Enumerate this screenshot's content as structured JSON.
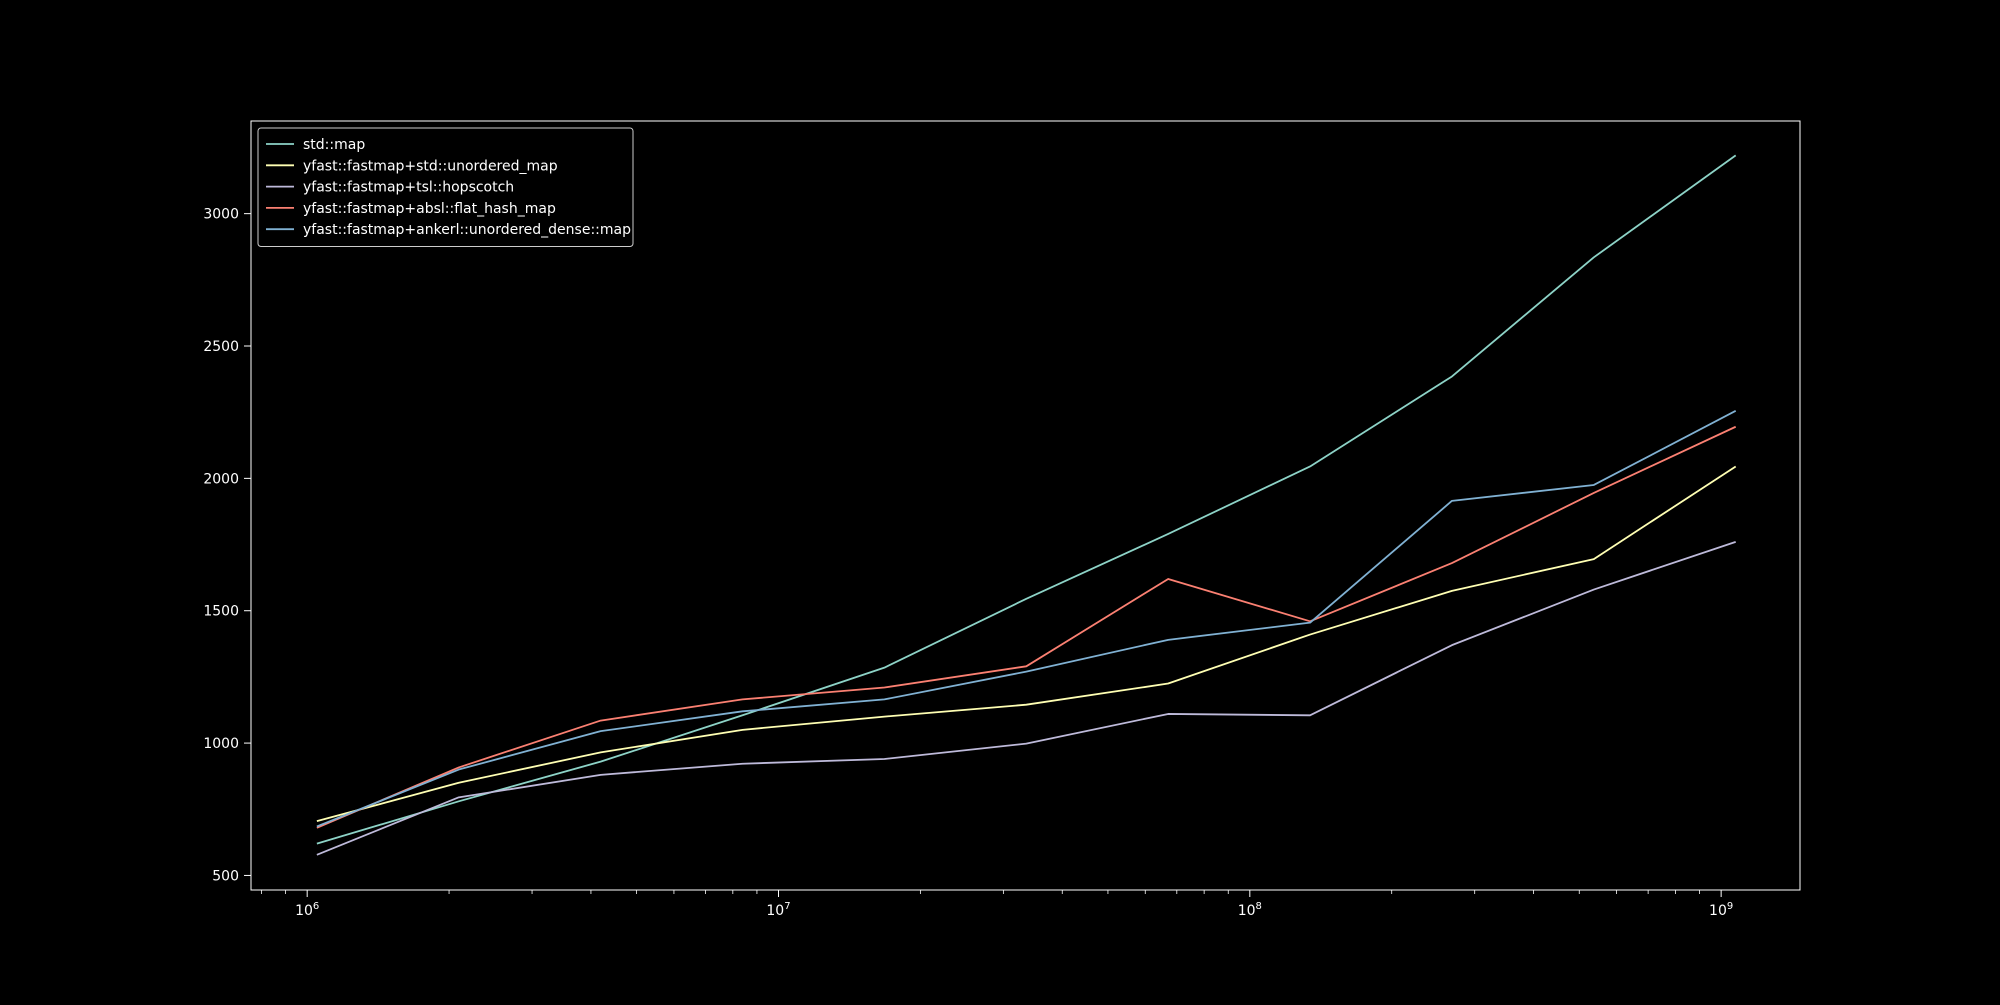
{
  "chart_data": {
    "type": "line",
    "title": "",
    "xlabel": "",
    "ylabel": "",
    "xscale": "log",
    "xlim": [
      760000,
      1470000000
    ],
    "ylim": [
      445,
      3350
    ],
    "grid": false,
    "legend_position": "top-left",
    "background": "#000000",
    "foreground": "#ffffff",
    "x": [
      1048576,
      2097152,
      4194304,
      8388608,
      16777216,
      33554432,
      67108864,
      134217728,
      268435456,
      536870912,
      1073741824
    ],
    "x_ticks": [
      {
        "value": 1000000,
        "base": "10",
        "exp": "6"
      },
      {
        "value": 10000000,
        "base": "10",
        "exp": "7"
      },
      {
        "value": 100000000,
        "base": "10",
        "exp": "8"
      },
      {
        "value": 1000000000,
        "base": "10",
        "exp": "9"
      }
    ],
    "y_ticks": [
      {
        "value": 500,
        "label": "500"
      },
      {
        "value": 1000,
        "label": "1000"
      },
      {
        "value": 1500,
        "label": "1500"
      },
      {
        "value": 2000,
        "label": "2000"
      },
      {
        "value": 2500,
        "label": "2500"
      },
      {
        "value": 3000,
        "label": "3000"
      }
    ],
    "series": [
      {
        "name": "std::map",
        "color": "#8dd3c7",
        "values": [
          620,
          780,
          930,
          1105,
          1285,
          1545,
          1790,
          2045,
          2385,
          2835,
          3220
        ]
      },
      {
        "name": "yfast::fastmap+std::unordered_map",
        "color": "#ffffb3",
        "values": [
          705,
          850,
          965,
          1050,
          1100,
          1145,
          1225,
          1410,
          1575,
          1695,
          2045
        ]
      },
      {
        "name": "yfast::fastmap+tsl::hopscotch",
        "color": "#bebada",
        "values": [
          578,
          795,
          880,
          922,
          940,
          998,
          1110,
          1105,
          1370,
          1580,
          1760
        ]
      },
      {
        "name": "yfast::fastmap+absl::flat_hash_map",
        "color": "#fb8072",
        "values": [
          680,
          908,
          1085,
          1165,
          1210,
          1290,
          1620,
          1460,
          1680,
          1945,
          2195
        ]
      },
      {
        "name": "yfast::fastmap+ankerl::unordered_dense::map",
        "color": "#80b1d3",
        "values": [
          685,
          900,
          1045,
          1120,
          1165,
          1270,
          1390,
          1455,
          1915,
          1975,
          2255
        ]
      }
    ]
  }
}
